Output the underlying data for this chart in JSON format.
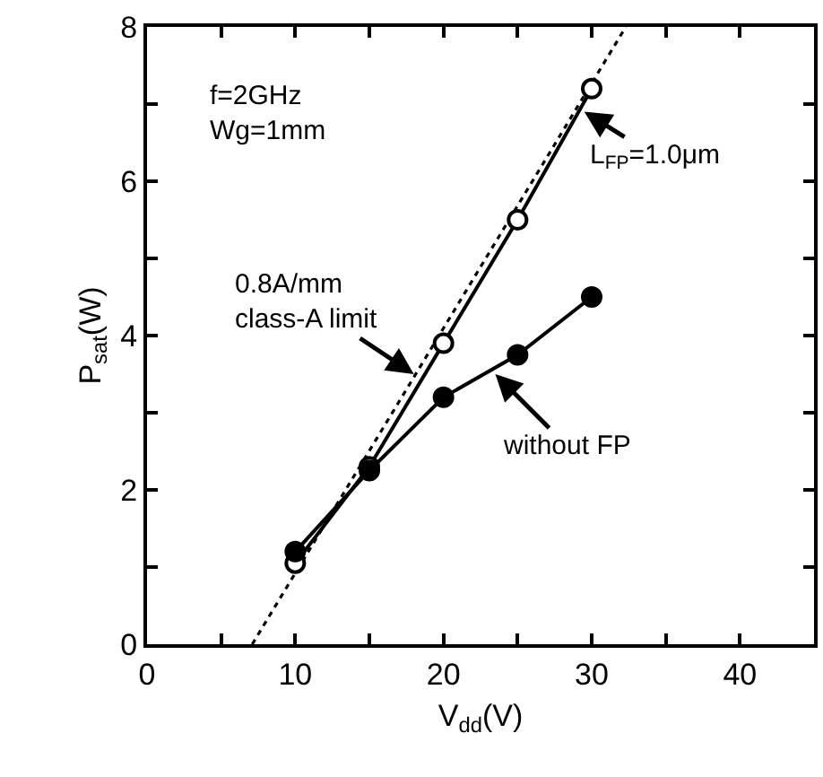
{
  "chart_data": {
    "type": "line",
    "xlabel": "V$_{dd}$(V)",
    "ylabel": "P$_{sat}$(W)",
    "xlim": [
      0,
      45
    ],
    "ylim": [
      0,
      8
    ],
    "xticks": [
      0,
      {
        "value": 5,
        "label": null
      },
      10,
      {
        "value": 15,
        "label": null
      },
      20,
      {
        "value": 25,
        "label": null
      },
      30,
      {
        "value": 35,
        "label": null
      },
      40
    ],
    "yticks": [
      0,
      {
        "value": 1,
        "label": null
      },
      2,
      {
        "value": 3,
        "label": null
      },
      4,
      {
        "value": 5,
        "label": null
      },
      6,
      {
        "value": 7,
        "label": null
      },
      8
    ],
    "series": [
      {
        "type": "line",
        "x": [
          7.1,
          32.3
        ],
        "values": [
          0,
          8
        ],
        "color": "#000000",
        "marker": "none",
        "line_style": "dotted"
      },
      {
        "x": [
          10,
          15,
          20,
          25,
          30
        ],
        "values": [
          1.05,
          2.3,
          3.9,
          5.5,
          7.2
        ],
        "color": "#000000",
        "colors": [
          "#ffffff",
          "#ffffff",
          "#ffffff",
          "#ffffff",
          "#ffffff"
        ],
        "marker": "circle",
        "line_style": "solid"
      },
      {
        "x": [
          10,
          15,
          20,
          25,
          30
        ],
        "values": [
          1.2,
          2.25,
          3.2,
          3.75,
          4.5
        ],
        "color": "#000000",
        "marker": "circle",
        "line_style": "solid"
      }
    ],
    "annotations": [
      "f=2GHz\nWg=1mm",
      {
        "text": "0.8A/mm\nclass-A limit",
        "x": 18,
        "y": 3.5
      },
      {
        "text": "L$_{FP}$=1.0μm",
        "x": 29.5,
        "y": 6.9
      },
      {
        "text": "without FP",
        "x": 23.5,
        "y": 3.5
      }
    ]
  }
}
